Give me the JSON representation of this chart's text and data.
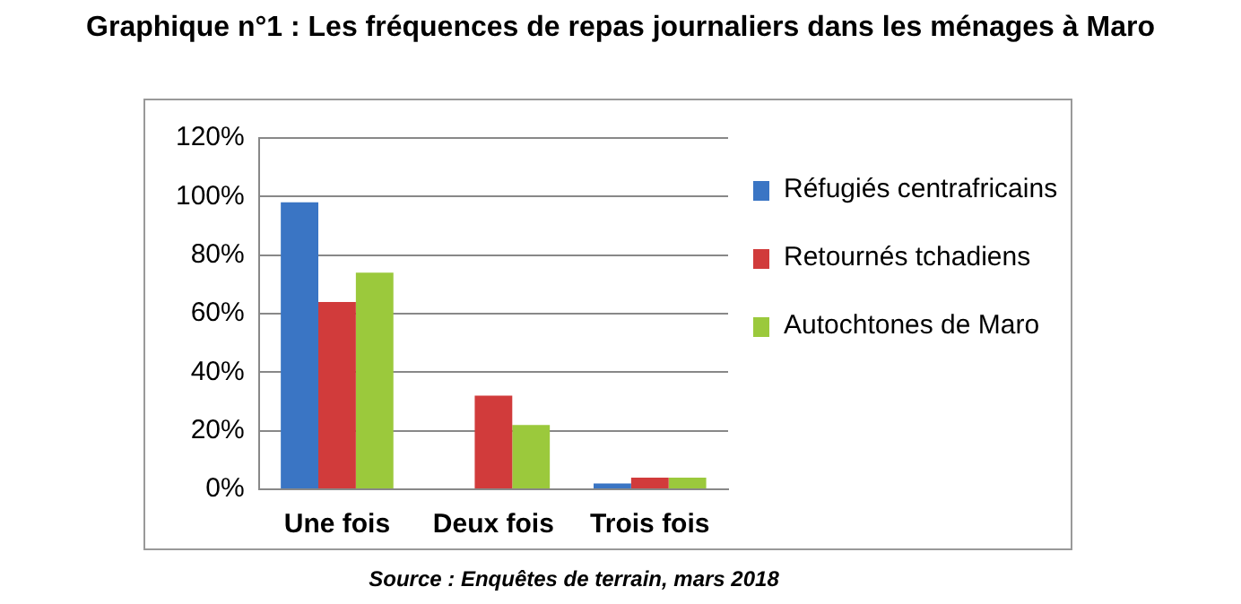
{
  "chart_data": {
    "type": "bar",
    "title": "Graphique n°1 : Les fréquences de repas journaliers dans les ménages à Maro",
    "categories": [
      "Une fois",
      "Deux fois",
      "Trois fois"
    ],
    "series": [
      {
        "name": "Réfugiés centrafricains",
        "color": "#3a75c4",
        "values": [
          98,
          0,
          2
        ]
      },
      {
        "name": "Retournés tchadiens",
        "color": "#d13b3b",
        "values": [
          64,
          32,
          4
        ]
      },
      {
        "name": "Autochtones de Maro",
        "color": "#9bc93c",
        "values": [
          74,
          22,
          4
        ]
      }
    ],
    "ylim": [
      0,
      120
    ],
    "yticks": [
      {
        "value": 0,
        "label": "0%"
      },
      {
        "value": 20,
        "label": "20%"
      },
      {
        "value": 40,
        "label": "40%"
      },
      {
        "value": 60,
        "label": "60%"
      },
      {
        "value": 80,
        "label": "80%"
      },
      {
        "value": 100,
        "label": "100%"
      },
      {
        "value": 120,
        "label": "120%"
      }
    ],
    "grid": "y",
    "legend": "right",
    "annotations": [
      "Source : Enquêtes de terrain, mars 2018"
    ]
  }
}
